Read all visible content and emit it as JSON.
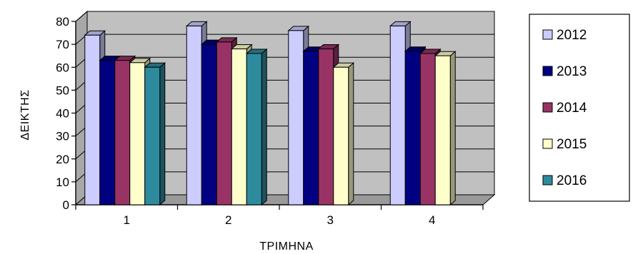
{
  "chart_data": {
    "type": "bar",
    "title": "",
    "xlabel": "ΤΡΙΜΗΝΑ",
    "ylabel": "ΔΕΙΚΤΗΣ",
    "categories": [
      "1",
      "2",
      "3",
      "4"
    ],
    "ylim": [
      0,
      80
    ],
    "yticks": [
      "0",
      "10",
      "20",
      "30",
      "40",
      "50",
      "60",
      "70",
      "80"
    ],
    "grid": true,
    "legend_position": "right",
    "style": "3d-clustered",
    "series": [
      {
        "name": "2012",
        "color": "#ccccff",
        "values": [
          74,
          78,
          76,
          78
        ]
      },
      {
        "name": "2013",
        "color": "#000080",
        "values": [
          63,
          70,
          67,
          67
        ]
      },
      {
        "name": "2014",
        "color": "#993366",
        "values": [
          63,
          71,
          68,
          66
        ]
      },
      {
        "name": "2015",
        "color": "#ffffcc",
        "values": [
          62,
          68,
          60,
          65
        ]
      },
      {
        "name": "2016",
        "color": "#2e8b9e",
        "values": [
          60,
          66,
          null,
          null
        ]
      }
    ]
  }
}
